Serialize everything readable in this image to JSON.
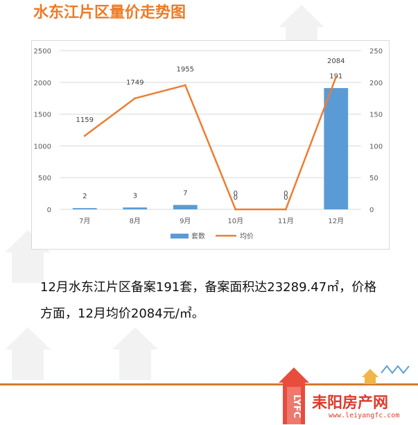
{
  "header": {
    "title": "水东江片区量价走势图"
  },
  "chart_data": {
    "type": "bar+line",
    "categories": [
      "7月",
      "8月",
      "9月",
      "10月",
      "11月",
      "12月"
    ],
    "series": [
      {
        "name": "套数",
        "type": "bar",
        "axis": "right",
        "values": [
          2,
          3,
          7,
          0,
          0,
          191
        ],
        "color": "#5b9bd5"
      },
      {
        "name": "均价",
        "type": "line",
        "axis": "left",
        "values": [
          1159,
          1749,
          1955,
          0,
          0,
          2084
        ],
        "color": "#ed7d31"
      }
    ],
    "left_ticks": [
      "0",
      "500",
      "1000",
      "1500",
      "2000",
      "2500"
    ],
    "right_ticks": [
      "0",
      "50",
      "100",
      "150",
      "200",
      "250"
    ],
    "ylim_left": [
      0,
      2500
    ],
    "ylim_right": [
      0,
      250
    ],
    "grid": true,
    "legend": "bottom"
  },
  "description": {
    "line1": "12月水东江片区备案191套，备案面积达23289.47㎡，价格",
    "line2": "方面，12月均价2084元/㎡。"
  },
  "branding": {
    "name": "耒阳房产网",
    "url": "www.leiyangfc.com",
    "logo_letters": "LYFC",
    "accent_color": "#e03a2a",
    "title_color": "#ee7a24"
  }
}
